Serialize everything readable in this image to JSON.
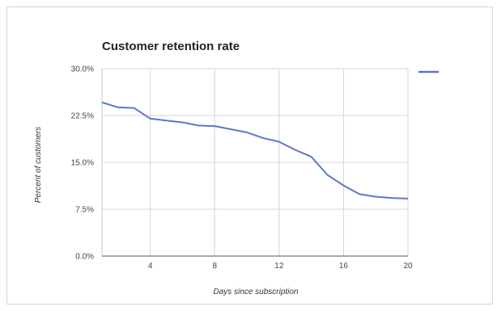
{
  "chart_data": {
    "type": "line",
    "title": "Customer retention rate",
    "xlabel": "Days since subscription",
    "ylabel": "Percent of customers",
    "xlim": [
      1,
      20
    ],
    "ylim": [
      0,
      30
    ],
    "x_ticks": [
      4,
      8,
      12,
      16,
      20
    ],
    "y_ticks": [
      0,
      7.5,
      15,
      22.5,
      30
    ],
    "y_tick_labels": [
      "0.0%",
      "7.5%",
      "15.0%",
      "22.5%",
      "30.0%"
    ],
    "grid": true,
    "legend": "right",
    "series": [
      {
        "color": "#5a78c8",
        "x": [
          1,
          2,
          3,
          4,
          5,
          6,
          7,
          8,
          9,
          10,
          11,
          12,
          13,
          14,
          15,
          16,
          17,
          18,
          19,
          20
        ],
        "values": [
          24.6,
          23.8,
          23.7,
          22.0,
          21.7,
          21.4,
          20.9,
          20.8,
          20.3,
          19.8,
          18.9,
          18.3,
          17.0,
          15.9,
          13.0,
          11.3,
          9.9,
          9.5,
          9.3,
          9.2
        ]
      }
    ]
  }
}
